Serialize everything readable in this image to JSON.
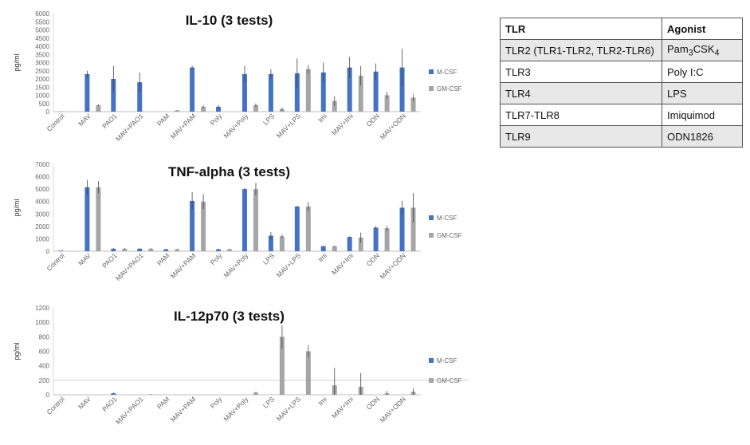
{
  "chart_data": [
    {
      "type": "bar",
      "title": "IL-10 (3 tests)",
      "ylabel": "pg/ml",
      "ylim": [
        0,
        6000
      ],
      "yticks": [
        "0",
        "500",
        "1000",
        "1500",
        "2000",
        "2500",
        "3000",
        "3500",
        "4000",
        "4500",
        "5000",
        "5500",
        "6000"
      ],
      "categories": [
        "Control",
        "MAV",
        "PAO1",
        "MAV+PAO1",
        "PAM",
        "MAV+PAM",
        "Poly",
        "MAV+Poly",
        "LPS",
        "MAV+LPS",
        "Imi",
        "MAV+Imi",
        "ODN",
        "MAV+ODN"
      ],
      "series": [
        {
          "name": "M-CSF",
          "color": "#4472c4",
          "values": [
            10,
            2300,
            2000,
            1800,
            0,
            2700,
            300,
            2300,
            2300,
            2350,
            2400,
            2700,
            2450,
            2700
          ],
          "errors": [
            0,
            200,
            800,
            600,
            0,
            100,
            100,
            500,
            300,
            900,
            600,
            650,
            500,
            1150
          ]
        },
        {
          "name": "GM-CSF",
          "color": "#a5a5a5",
          "values": [
            0,
            400,
            0,
            0,
            80,
            300,
            0,
            400,
            150,
            2600,
            650,
            2200,
            1000,
            850
          ],
          "errors": [
            0,
            50,
            0,
            0,
            20,
            100,
            0,
            100,
            100,
            250,
            300,
            600,
            200,
            200
          ]
        }
      ]
    },
    {
      "type": "bar",
      "title": "TNF-alpha (3 tests)",
      "ylabel": "pg/ml",
      "ylim": [
        0,
        7000
      ],
      "yticks": [
        "0",
        "1000",
        "2000",
        "3000",
        "4000",
        "5000",
        "6000",
        "7000"
      ],
      "categories": [
        "Control",
        "MAV",
        "PAO1",
        "MAV+PAO1",
        "PAM",
        "MAV+PAM",
        "Poly",
        "MAV+Poly",
        "LPS",
        "MAV+LPS",
        "Imi",
        "MAV+Imi",
        "ODN",
        "MAV+ODN"
      ],
      "series": [
        {
          "name": "M-CSF",
          "color": "#4472c4",
          "values": [
            50,
            5150,
            200,
            200,
            150,
            4050,
            150,
            5000,
            1250,
            3600,
            400,
            1150,
            1900,
            3500
          ],
          "errors": [
            0,
            600,
            50,
            50,
            50,
            700,
            50,
            100,
            300,
            50,
            50,
            50,
            100,
            550
          ]
        },
        {
          "name": "GM-CSF",
          "color": "#a5a5a5",
          "values": [
            0,
            5150,
            200,
            200,
            150,
            4000,
            150,
            5000,
            1200,
            3600,
            400,
            1100,
            1850,
            3500
          ],
          "errors": [
            0,
            500,
            50,
            50,
            50,
            600,
            50,
            500,
            150,
            350,
            50,
            400,
            200,
            1200
          ]
        }
      ]
    },
    {
      "type": "bar",
      "title": "IL-12p70 (3 tests)",
      "ylabel": "pg/ml",
      "ylim": [
        0,
        1200
      ],
      "yticks": [
        "0",
        "200",
        "400",
        "600",
        "800",
        "1000",
        "1200"
      ],
      "categories": [
        "Control",
        "MAV",
        "PAO1",
        "MAV+PAO1",
        "PAM",
        "MAV+PAM",
        "Poly",
        "MAV+Poly",
        "LPS",
        "MAV+LPS",
        "Imi",
        "MAV+Imi",
        "ODN",
        "MAV+ODN"
      ],
      "series": [
        {
          "name": "M-CSF",
          "color": "#4472c4",
          "values": [
            0,
            0,
            20,
            0,
            0,
            0,
            0,
            0,
            0,
            0,
            0,
            0,
            0,
            0
          ],
          "errors": [
            0,
            0,
            10,
            0,
            0,
            0,
            0,
            0,
            0,
            0,
            0,
            0,
            0,
            0
          ]
        },
        {
          "name": "GM-CSF",
          "color": "#a5a5a5",
          "values": [
            0,
            0,
            0,
            5,
            0,
            0,
            0,
            30,
            800,
            600,
            130,
            110,
            20,
            40
          ],
          "errors": [
            0,
            0,
            0,
            5,
            0,
            0,
            0,
            10,
            160,
            80,
            240,
            190,
            30,
            50
          ]
        }
      ]
    }
  ],
  "tlr_table": {
    "headers": [
      "TLR",
      "Agonist"
    ],
    "rows": [
      {
        "tlr": "TLR2 (TLR1-TLR2, TLR2-TLR6)",
        "agonist": "Pam",
        "agonist_sub": "3",
        "agonist_mid": "CSK",
        "agonist_sub2": "4"
      },
      {
        "tlr": "TLR3",
        "agonist": "Poly I:C"
      },
      {
        "tlr": "TLR4",
        "agonist": "LPS"
      },
      {
        "tlr": "TLR7-TLR8",
        "agonist": "Imiquimod"
      },
      {
        "tlr": "TLR9",
        "agonist": "ODN1826"
      }
    ]
  }
}
